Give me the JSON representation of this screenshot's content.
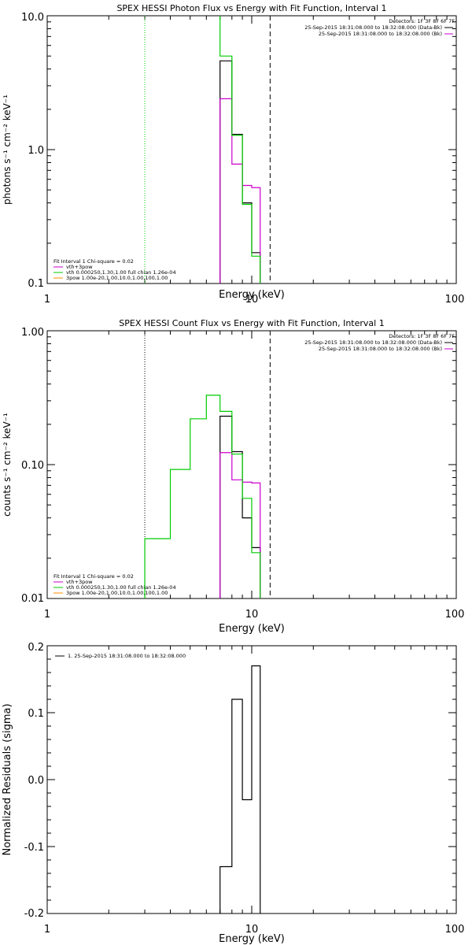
{
  "panel1": {
    "title": "SPEX HESSI Photon Flux vs Energy with Fit Function, Interval 1",
    "ylabel": "photons s⁻¹ cm⁻² keV⁻¹",
    "xlabel": "Energy (keV)",
    "xticks": [
      "1",
      "10",
      "100"
    ],
    "yticks": [
      "10.0",
      "1.0",
      "0.1"
    ],
    "info": [
      "Detectors: 1F 3F 8F 6F 7F",
      "25-Sep-2015 18:31:08.000 to 18:32:08.000 (Data-Bk)",
      "25-Sep-2015 18:31:08.000 to 18:32:08.000 (Bk)"
    ],
    "legend": [
      "Fit Interval 1    Chi-square = 0.02",
      "vth+3pow",
      "vth 0.000250,1.30,1.00  full chian 1.26e-04",
      "3pow 1.00e-20,1.00,10.0,1.00,100,1.00"
    ]
  },
  "panel2": {
    "title": "SPEX HESSI Count Flux vs Energy with Fit Function, Interval 1",
    "ylabel": "counts s⁻¹ cm⁻² keV⁻¹",
    "xlabel": "Energy (keV)",
    "xticks": [
      "1",
      "10",
      "100"
    ],
    "yticks": [
      "1.00",
      "0.10",
      "0.01"
    ],
    "info": [
      "Detectors: 1F 3F 8F 6F 7F",
      "25-Sep-2015 18:31:08.000 to 18:32:08.000 (Data-Bk)",
      "25-Sep-2015 18:31:08.000 to 18:32:08.000 (Bk)"
    ],
    "legend": [
      "Fit Interval 1    Chi-square = 0.02",
      "vth+3pow",
      "vth 0.000250,1.30,1.00  full chian 1.26e-04",
      "3pow 1.00e-20,1.00,10.0,1.00,100,1.00"
    ]
  },
  "panel3": {
    "ylabel": "Normalized Residuals (sigma)",
    "xlabel": "Energy (keV)",
    "xticks": [
      "1",
      "10",
      "100"
    ],
    "yticks": [
      "0.2",
      "0.1",
      "0.0",
      "-0.1",
      "-0.2"
    ],
    "legend": [
      "1. 25-Sep-2015 18:31:08.000 to 18:32:08.000"
    ]
  },
  "colors": {
    "data": "#000000",
    "background": "#cc00cc",
    "fit": "#00cc00",
    "component": "#ff8c00"
  },
  "chart_data": [
    {
      "type": "line",
      "title": "SPEX HESSI Photon Flux vs Energy with Fit Function, Interval 1",
      "xlabel": "Energy (keV)",
      "ylabel": "photons s⁻¹ cm⁻² keV⁻¹",
      "xscale": "log",
      "yscale": "log",
      "xlim": [
        1,
        100
      ],
      "ylim": [
        0.1,
        10
      ],
      "grid": false,
      "vlines": [
        {
          "x": 3.0,
          "style": "green-dotted"
        },
        {
          "x": 12.3,
          "style": "black-dashed"
        }
      ],
      "series": [
        {
          "name": "Data-Bk",
          "edges": [
            7,
            8,
            9,
            10,
            11
          ],
          "values": [
            4.6,
            1.3,
            0.4,
            0.17
          ]
        },
        {
          "name": "Bk",
          "edges": [
            7,
            8,
            9,
            10,
            11
          ],
          "values": [
            2.4,
            0.78,
            0.54,
            0.52
          ]
        },
        {
          "name": "vth+3pow",
          "edges": [
            7,
            8,
            9,
            10,
            11
          ],
          "values": [
            5.0,
            1.28,
            0.39,
            0.16
          ]
        }
      ]
    },
    {
      "type": "line",
      "title": "SPEX HESSI Count Flux vs Energy with Fit Function, Interval 1",
      "xlabel": "Energy (keV)",
      "ylabel": "counts s⁻¹ cm⁻² keV⁻¹",
      "xscale": "log",
      "yscale": "log",
      "xlim": [
        1,
        100
      ],
      "ylim": [
        0.01,
        1
      ],
      "grid": false,
      "vlines": [
        {
          "x": 3.0,
          "style": "black-dotted"
        },
        {
          "x": 12.3,
          "style": "black-dashed"
        }
      ],
      "series": [
        {
          "name": "Data-Bk",
          "edges": [
            7,
            8,
            9,
            10,
            11
          ],
          "values": [
            0.23,
            0.125,
            0.04,
            0.024
          ]
        },
        {
          "name": "Bk",
          "edges": [
            7,
            8,
            9,
            10,
            11
          ],
          "values": [
            0.123,
            0.077,
            0.074,
            0.073
          ]
        },
        {
          "name": "vth+3pow",
          "edges": [
            3,
            4,
            5,
            6,
            7,
            8,
            9,
            10,
            11
          ],
          "values": [
            0.028,
            0.092,
            0.22,
            0.33,
            0.25,
            0.12,
            0.056,
            0.022
          ]
        }
      ]
    },
    {
      "type": "line",
      "xlabel": "Energy (keV)",
      "ylabel": "Normalized Residuals (sigma)",
      "xscale": "log",
      "xlim": [
        1,
        100
      ],
      "ylim": [
        -0.2,
        0.2
      ],
      "grid": false,
      "series": [
        {
          "name": "1. 25-Sep-2015 18:31:08.000 to 18:32:08.000",
          "edges": [
            7,
            8,
            9,
            10,
            11
          ],
          "values": [
            -0.13,
            0.12,
            -0.03,
            0.17
          ]
        }
      ]
    }
  ]
}
